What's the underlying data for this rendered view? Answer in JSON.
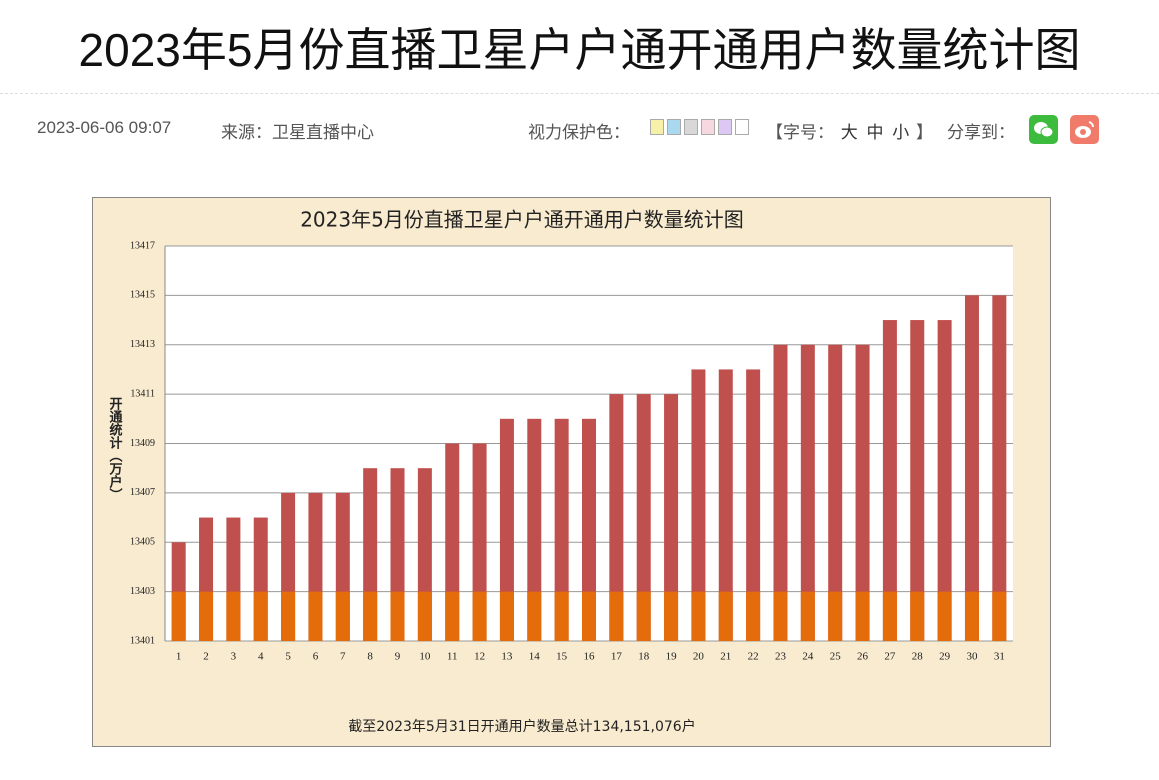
{
  "header": {
    "title": "2023年5月份直播卫星户户通开通用户数量统计图"
  },
  "meta": {
    "date": "2023-06-06 09:07",
    "source": "来源：卫星直播中心",
    "eye_care": "视力保护色：",
    "font_size": {
      "label": "【字号：",
      "options": [
        "大",
        "中",
        "小"
      ],
      "close": "】"
    },
    "share": "分享到："
  },
  "chart_data": {
    "type": "bar",
    "title": "2023年5月份直播卫星户户通开通用户数量统计图",
    "y_label": "开通统计（万户）",
    "note": "截至2023年5月31日开通用户数量总计134,151,076户",
    "categories": [
      "1",
      "2",
      "3",
      "4",
      "5",
      "6",
      "7",
      "8",
      "9",
      "10",
      "11",
      "12",
      "13",
      "14",
      "15",
      "16",
      "17",
      "18",
      "19",
      "20",
      "21",
      "22",
      "23",
      "24",
      "25",
      "26",
      "27",
      "28",
      "29",
      "30",
      "31"
    ],
    "series": [
      {
        "color": "#c0504d",
        "values": [
          13405,
          13406,
          13406,
          13406,
          13407,
          13407,
          13407,
          13408,
          13408,
          13408,
          13409,
          13409,
          13410,
          13410,
          13410,
          13410,
          13411,
          13411,
          13411,
          13412,
          13412,
          13412,
          13413,
          13413,
          13413,
          13413,
          13414,
          13414,
          13414,
          13415,
          13415
        ]
      },
      {
        "color": "#e46c0a",
        "values": [
          13403,
          13403,
          13403,
          13403,
          13403,
          13403,
          13403,
          13403,
          13403,
          13403,
          13403,
          13403,
          13403,
          13403,
          13403,
          13403,
          13403,
          13403,
          13403,
          13403,
          13403,
          13403,
          13403,
          13403,
          13403,
          13403,
          13403,
          13403,
          13403,
          13403,
          13403
        ]
      }
    ],
    "ylim": [
      13401,
      13417
    ],
    "yticks": [
      13401,
      13403,
      13405,
      13407,
      13409,
      13411,
      13413,
      13415,
      13417
    ],
    "grid": true
  }
}
